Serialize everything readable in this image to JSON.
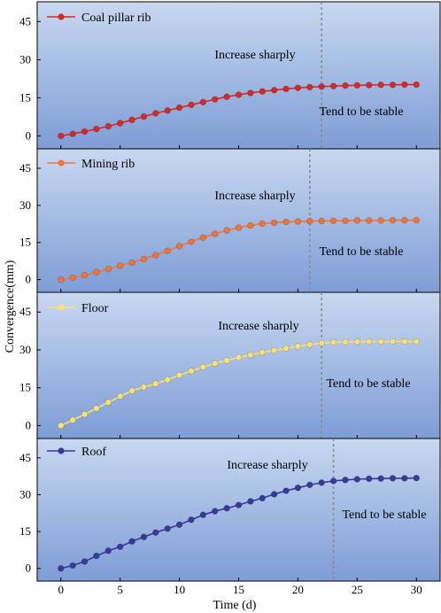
{
  "figure": {
    "ylabel": "Convergence(mm)",
    "xlabel": "Time (d)"
  },
  "colors": {
    "panel_top": "#c8d8f0",
    "panel_bottom": "#7e9dd6",
    "divider": "#8a8a8a"
  },
  "chart_data": [
    {
      "type": "line",
      "series": [
        {
          "name": "Coal pillar rib",
          "color": "#d42a2a",
          "x": [
            0,
            1,
            2,
            3,
            4,
            5,
            6,
            7,
            8,
            9,
            10,
            11,
            12,
            13,
            14,
            15,
            16,
            17,
            18,
            19,
            20,
            21,
            22,
            23,
            24,
            25,
            26,
            27,
            28,
            29,
            30
          ],
          "values": [
            0,
            0.8,
            1.7,
            2.7,
            3.8,
            5.0,
            6.3,
            7.6,
            8.9,
            10.0,
            11.1,
            12.2,
            13.3,
            14.4,
            15.4,
            16.2,
            16.9,
            17.5,
            18.0,
            18.5,
            18.9,
            19.2,
            19.4,
            19.6,
            19.8,
            19.9,
            20.0,
            20.1,
            20.1,
            20.2,
            20.2
          ]
        }
      ],
      "ylim": [
        -3,
        50
      ],
      "yticks": [
        0,
        15,
        30,
        45
      ],
      "xlim": [
        -2,
        32
      ],
      "divider_x": 22,
      "annotations": {
        "left": "Increase sharply",
        "right": "Tend to be stable"
      }
    },
    {
      "type": "line",
      "series": [
        {
          "name": "Mining rib",
          "color": "#f0743a",
          "x": [
            0,
            1,
            2,
            3,
            4,
            5,
            6,
            7,
            8,
            9,
            10,
            11,
            12,
            13,
            14,
            15,
            16,
            17,
            18,
            19,
            20,
            21,
            22,
            23,
            24,
            25,
            26,
            27,
            28,
            29,
            30
          ],
          "values": [
            0,
            0.8,
            1.8,
            3.0,
            4.3,
            5.6,
            6.9,
            8.3,
            9.9,
            11.6,
            13.5,
            15.3,
            17.0,
            18.5,
            19.9,
            21.0,
            21.9,
            22.6,
            23.0,
            23.3,
            23.5,
            23.6,
            23.7,
            23.8,
            23.8,
            23.9,
            23.9,
            23.9,
            24.0,
            24.0,
            24.0
          ]
        }
      ],
      "ylim": [
        -3,
        50
      ],
      "yticks": [
        0,
        15,
        30,
        45
      ],
      "xlim": [
        -2,
        32
      ],
      "divider_x": 21,
      "annotations": {
        "left": "Increase sharply",
        "right": "Tend to be stable"
      }
    },
    {
      "type": "line",
      "series": [
        {
          "name": "Floor",
          "color": "#f7e07a",
          "x": [
            0,
            1,
            2,
            3,
            4,
            5,
            6,
            7,
            8,
            9,
            10,
            11,
            12,
            13,
            14,
            15,
            16,
            17,
            18,
            19,
            20,
            21,
            22,
            23,
            24,
            25,
            26,
            27,
            28,
            29,
            30
          ],
          "values": [
            0,
            2.2,
            4.5,
            6.8,
            9.2,
            11.6,
            13.8,
            15.3,
            16.6,
            18.2,
            20.0,
            21.6,
            23.2,
            24.6,
            25.8,
            27.0,
            28.0,
            29.0,
            29.8,
            30.6,
            31.4,
            32.1,
            32.7,
            33.0,
            33.1,
            33.2,
            33.3,
            33.3,
            33.3,
            33.3,
            33.3
          ]
        }
      ],
      "ylim": [
        -3,
        50
      ],
      "yticks": [
        0,
        15,
        30,
        45
      ],
      "xlim": [
        -2,
        32
      ],
      "divider_x": 22,
      "annotations": {
        "left": "Increase sharply",
        "right": "Tend to be stable"
      }
    },
    {
      "type": "line",
      "series": [
        {
          "name": "Roof",
          "color": "#3a3a9a",
          "x": [
            0,
            1,
            2,
            3,
            4,
            5,
            6,
            7,
            8,
            9,
            10,
            11,
            12,
            13,
            14,
            15,
            16,
            17,
            18,
            19,
            20,
            21,
            22,
            23,
            24,
            25,
            26,
            27,
            28,
            29,
            30
          ],
          "values": [
            0,
            1.2,
            2.8,
            5.1,
            7.2,
            8.8,
            11.0,
            12.8,
            14.6,
            16.2,
            17.8,
            19.8,
            21.8,
            23.3,
            24.5,
            25.8,
            27.3,
            28.6,
            30.2,
            31.6,
            32.8,
            34.0,
            34.9,
            35.6,
            36.0,
            36.3,
            36.5,
            36.6,
            36.7,
            36.7,
            36.8
          ]
        }
      ],
      "ylim": [
        -3,
        50
      ],
      "yticks": [
        0,
        15,
        30,
        45
      ],
      "xlim": [
        -2,
        32
      ],
      "divider_x": 23,
      "annotations": {
        "left": "Increase sharply",
        "right": "Tend to be stable"
      }
    }
  ],
  "xaxis": {
    "ticks": [
      0,
      5,
      10,
      15,
      20,
      25,
      30
    ]
  }
}
